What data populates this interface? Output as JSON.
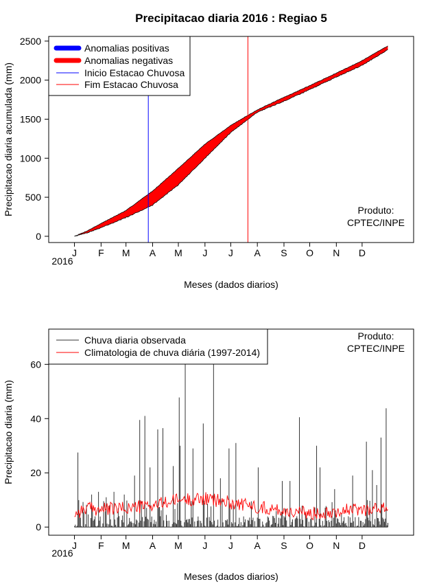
{
  "chart_data": [
    {
      "type": "area",
      "title": "Precipitacao diaria 2016 : Regiao 5",
      "xlabel": "Meses (dados diarios)",
      "ylabel": "Precipitacao diaria acumulada (mm)",
      "year_label": "2016",
      "month_ticks": [
        "J",
        "F",
        "M",
        "A",
        "M",
        "J",
        "J",
        "A",
        "S",
        "O",
        "N",
        "D"
      ],
      "xlim_days": [
        -30,
        395
      ],
      "ylim": [
        -80,
        2560
      ],
      "yticks": [
        0,
        500,
        1000,
        1500,
        2000,
        2500
      ],
      "legend": [
        {
          "label": "Anomalias positivas",
          "color": "#0000ff",
          "style": "thick"
        },
        {
          "label": "Anomalias negativas",
          "color": "#ff0000",
          "style": "thick"
        },
        {
          "label": "Inicio Estacao Chuvosa",
          "color": "#0000ff",
          "style": "thin"
        },
        {
          "label": "Fim Estacao Chuvosa",
          "color": "#ff0000",
          "style": "thin"
        }
      ],
      "credit": [
        "Produto:",
        "CPTEC/INPE"
      ],
      "vlines": [
        {
          "name": "Inicio Estacao Chuvosa",
          "day": 86,
          "color": "#0000ff"
        },
        {
          "name": "Fim Estacao Chuvosa",
          "day": 202,
          "color": "#ff0000"
        }
      ],
      "series": [
        {
          "name": "Climatologia acumulada",
          "color": "#ff0000",
          "x": [
            0,
            15,
            31,
            60,
            91,
            121,
            152,
            182,
            213,
            244,
            274,
            305,
            335,
            365
          ],
          "values": [
            0,
            70,
            165,
            330,
            580,
            870,
            1180,
            1420,
            1620,
            1780,
            1930,
            2090,
            2250,
            2440
          ]
        },
        {
          "name": "Observado acumulado",
          "color": "#000000",
          "x": [
            0,
            15,
            31,
            60,
            91,
            121,
            152,
            182,
            213,
            244,
            274,
            305,
            335,
            365
          ],
          "values": [
            0,
            45,
            110,
            240,
            400,
            660,
            1000,
            1330,
            1590,
            1730,
            1880,
            2040,
            2190,
            2390
          ]
        }
      ]
    },
    {
      "type": "line",
      "xlabel": "Meses (dados diarios)",
      "ylabel": "Precipitacao diaria (mm)",
      "year_label": "2016",
      "month_ticks": [
        "J",
        "F",
        "M",
        "A",
        "M",
        "J",
        "J",
        "A",
        "S",
        "O",
        "N",
        "D"
      ],
      "xlim_days": [
        -30,
        395
      ],
      "ylim": [
        -3,
        73
      ],
      "yticks": [
        0,
        20,
        40,
        60
      ],
      "legend": [
        {
          "label": "Chuva diaria observada",
          "color": "#000000"
        },
        {
          "label": "Climatologia de chuva diária (1997-2014)",
          "color": "#ff0000"
        }
      ],
      "credit": [
        "Produto:",
        "CPTEC/INPE"
      ],
      "series": [
        {
          "name": "Chuva diaria observada",
          "color": "#000000",
          "style": "spikes",
          "peaks": [
            {
              "day": 4,
              "value": 27.5
            },
            {
              "day": 20,
              "value": 12
            },
            {
              "day": 28,
              "value": 13
            },
            {
              "day": 37,
              "value": 11
            },
            {
              "day": 46,
              "value": 13
            },
            {
              "day": 58,
              "value": 12
            },
            {
              "day": 70,
              "value": 19
            },
            {
              "day": 76,
              "value": 39.5
            },
            {
              "day": 82,
              "value": 41
            },
            {
              "day": 88,
              "value": 22
            },
            {
              "day": 97,
              "value": 36
            },
            {
              "day": 103,
              "value": 36.5
            },
            {
              "day": 115,
              "value": 22.5
            },
            {
              "day": 122,
              "value": 47.8
            },
            {
              "day": 123,
              "value": 30
            },
            {
              "day": 129,
              "value": 73
            },
            {
              "day": 138,
              "value": 29
            },
            {
              "day": 150,
              "value": 38.2
            },
            {
              "day": 162,
              "value": 73
            },
            {
              "day": 170,
              "value": 18
            },
            {
              "day": 180,
              "value": 29
            },
            {
              "day": 188,
              "value": 31
            },
            {
              "day": 214,
              "value": 22
            },
            {
              "day": 242,
              "value": 17
            },
            {
              "day": 251,
              "value": 17
            },
            {
              "day": 262,
              "value": 40.5
            },
            {
              "day": 282,
              "value": 30
            },
            {
              "day": 286,
              "value": 22
            },
            {
              "day": 303,
              "value": 14
            },
            {
              "day": 324,
              "value": 19
            },
            {
              "day": 340,
              "value": 31.5
            },
            {
              "day": 347,
              "value": 21
            },
            {
              "day": 352,
              "value": 15.5
            },
            {
              "day": 357,
              "value": 33
            },
            {
              "day": 363,
              "value": 43.8
            }
          ]
        },
        {
          "name": "Climatologia de chuva diária (1997-2014)",
          "color": "#ff0000",
          "style": "line",
          "x": [
            0,
            15,
            31,
            60,
            91,
            121,
            152,
            182,
            213,
            244,
            274,
            305,
            335,
            365
          ],
          "values": [
            5,
            7,
            6.5,
            7,
            8,
            10,
            10.5,
            9,
            7.5,
            6,
            5,
            6,
            6.5,
            7
          ]
        }
      ]
    }
  ]
}
